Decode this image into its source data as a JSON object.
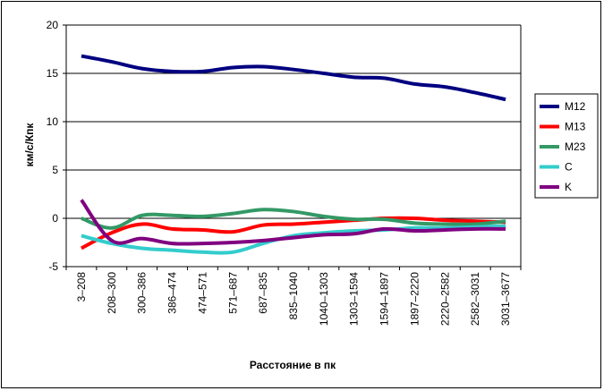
{
  "chart_data": {
    "type": "line",
    "xlabel": "Расстояние в пк",
    "ylabel": "км/с/Кпк",
    "ylim": [
      -5,
      20
    ],
    "yticks": [
      -5,
      0,
      5,
      10,
      15,
      20
    ],
    "grid": "horizontal",
    "legend": "right",
    "categories": [
      "3–208",
      "208–300",
      "300–386",
      "386–474",
      "474–571",
      "571–687",
      "687–835",
      "835–1040",
      "1040–1303",
      "1303–1594",
      "1594–1897",
      "1897–2220",
      "2220–2582",
      "2582–3031",
      "3031–3677"
    ],
    "series": [
      {
        "name": "M12",
        "color": "#000080",
        "values": [
          16.8,
          16.2,
          15.5,
          15.2,
          15.2,
          15.6,
          15.7,
          15.4,
          15.0,
          14.6,
          14.5,
          13.9,
          13.6,
          13.0,
          12.3
        ]
      },
      {
        "name": "M13",
        "color": "#ff0000",
        "values": [
          -3.1,
          -1.5,
          -0.6,
          -1.1,
          -1.2,
          -1.4,
          -0.7,
          -0.6,
          -0.4,
          -0.2,
          0.0,
          0.0,
          -0.2,
          -0.3,
          -0.4
        ]
      },
      {
        "name": "M23",
        "color": "#339966",
        "values": [
          0.0,
          -1.0,
          0.3,
          0.3,
          0.2,
          0.5,
          0.9,
          0.7,
          0.2,
          -0.1,
          -0.1,
          -0.5,
          -0.6,
          -0.6,
          -0.3
        ]
      },
      {
        "name": "C",
        "color": "#33cccc",
        "values": [
          -1.8,
          -2.6,
          -3.1,
          -3.3,
          -3.5,
          -3.5,
          -2.6,
          -1.8,
          -1.5,
          -1.3,
          -1.2,
          -1.0,
          -1.0,
          -0.9,
          -0.8
        ]
      },
      {
        "name": "K",
        "color": "#800080",
        "values": [
          1.9,
          -2.3,
          -2.1,
          -2.6,
          -2.6,
          -2.5,
          -2.3,
          -2.0,
          -1.7,
          -1.6,
          -1.1,
          -1.3,
          -1.2,
          -1.1,
          -1.1
        ]
      }
    ]
  }
}
